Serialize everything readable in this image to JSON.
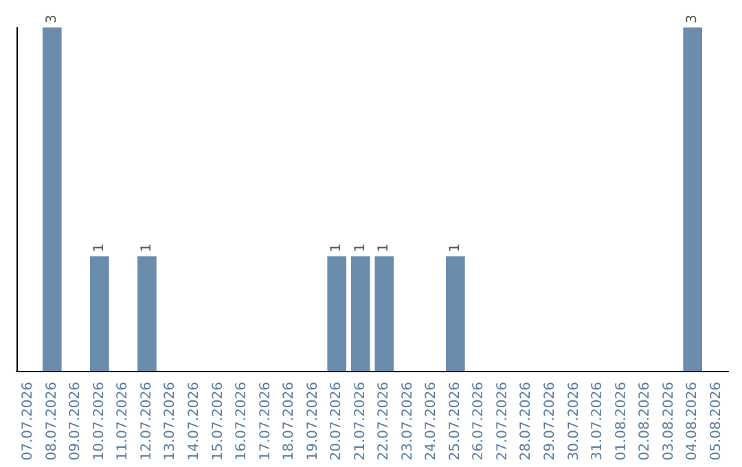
{
  "chart_data": {
    "type": "bar",
    "categories": [
      "07.07.2026",
      "08.07.2026",
      "09.07.2026",
      "10.07.2026",
      "11.07.2026",
      "12.07.2026",
      "13.07.2026",
      "14.07.2026",
      "15.07.2026",
      "16.07.2026",
      "17.07.2026",
      "18.07.2026",
      "19.07.2026",
      "20.07.2026",
      "21.07.2026",
      "22.07.2026",
      "23.07.2026",
      "24.07.2026",
      "25.07.2026",
      "26.07.2026",
      "27.07.2026",
      "28.07.2026",
      "29.07.2026",
      "30.07.2026",
      "31.07.2026",
      "01.08.2026",
      "02.08.2026",
      "03.08.2026",
      "04.08.2026",
      "05.08.2026"
    ],
    "values": [
      0,
      3,
      0,
      1,
      0,
      1,
      0,
      0,
      0,
      0,
      0,
      0,
      0,
      1,
      1,
      1,
      0,
      0,
      1,
      0,
      0,
      0,
      0,
      0,
      0,
      0,
      0,
      0,
      3,
      0
    ],
    "value_labels": [
      null,
      "3",
      null,
      "1",
      null,
      "1",
      null,
      null,
      null,
      null,
      null,
      null,
      null,
      "1",
      "1",
      "1",
      null,
      null,
      "1",
      null,
      null,
      null,
      null,
      null,
      null,
      null,
      null,
      null,
      "3",
      null
    ],
    "color": "#6a8cad",
    "tick_labels": "x"
  }
}
